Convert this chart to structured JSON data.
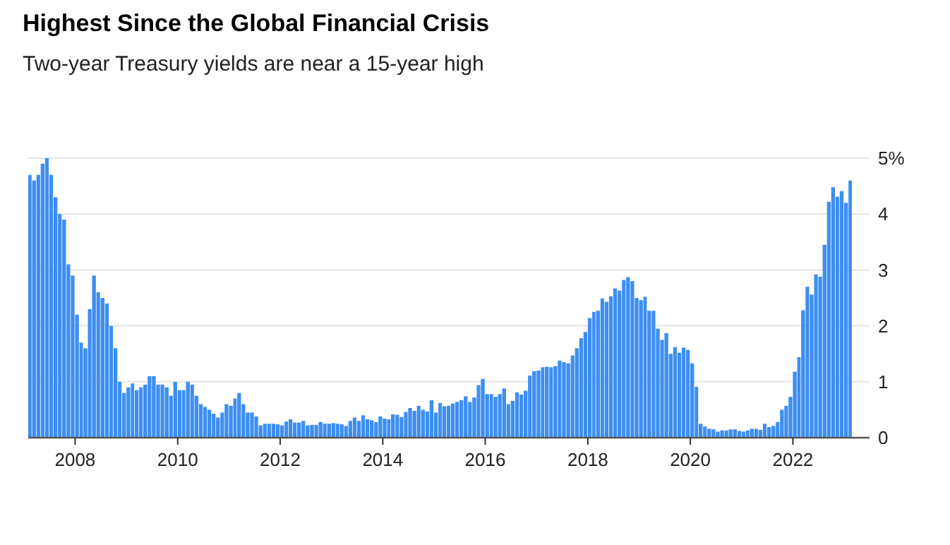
{
  "chart_data": {
    "type": "bar",
    "title": "Highest Since the Global Financial Crisis",
    "subtitle": "Two-year Treasury yields are near a 15-year high",
    "x": [
      "2007-02",
      "2007-03",
      "2007-04",
      "2007-05",
      "2007-06",
      "2007-07",
      "2007-08",
      "2007-09",
      "2007-10",
      "2007-11",
      "2007-12",
      "2008-01",
      "2008-02",
      "2008-03",
      "2008-04",
      "2008-05",
      "2008-06",
      "2008-07",
      "2008-08",
      "2008-09",
      "2008-10",
      "2008-11",
      "2008-12",
      "2009-01",
      "2009-02",
      "2009-03",
      "2009-04",
      "2009-05",
      "2009-06",
      "2009-07",
      "2009-08",
      "2009-09",
      "2009-10",
      "2009-11",
      "2009-12",
      "2010-01",
      "2010-02",
      "2010-03",
      "2010-04",
      "2010-05",
      "2010-06",
      "2010-07",
      "2010-08",
      "2010-09",
      "2010-10",
      "2010-11",
      "2010-12",
      "2011-01",
      "2011-02",
      "2011-03",
      "2011-04",
      "2011-05",
      "2011-06",
      "2011-07",
      "2011-08",
      "2011-09",
      "2011-10",
      "2011-11",
      "2011-12",
      "2012-01",
      "2012-02",
      "2012-03",
      "2012-04",
      "2012-05",
      "2012-06",
      "2012-07",
      "2012-08",
      "2012-09",
      "2012-10",
      "2012-11",
      "2012-12",
      "2013-01",
      "2013-02",
      "2013-03",
      "2013-04",
      "2013-05",
      "2013-06",
      "2013-07",
      "2013-08",
      "2013-09",
      "2013-10",
      "2013-11",
      "2013-12",
      "2014-01",
      "2014-02",
      "2014-03",
      "2014-04",
      "2014-05",
      "2014-06",
      "2014-07",
      "2014-08",
      "2014-09",
      "2014-10",
      "2014-11",
      "2014-12",
      "2015-01",
      "2015-02",
      "2015-03",
      "2015-04",
      "2015-05",
      "2015-06",
      "2015-07",
      "2015-08",
      "2015-09",
      "2015-10",
      "2015-11",
      "2015-12",
      "2016-01",
      "2016-02",
      "2016-03",
      "2016-04",
      "2016-05",
      "2016-06",
      "2016-07",
      "2016-08",
      "2016-09",
      "2016-10",
      "2016-11",
      "2016-12",
      "2017-01",
      "2017-02",
      "2017-03",
      "2017-04",
      "2017-05",
      "2017-06",
      "2017-07",
      "2017-08",
      "2017-09",
      "2017-10",
      "2017-11",
      "2017-12",
      "2018-01",
      "2018-02",
      "2018-03",
      "2018-04",
      "2018-05",
      "2018-06",
      "2018-07",
      "2018-08",
      "2018-09",
      "2018-10",
      "2018-11",
      "2018-12",
      "2019-01",
      "2019-02",
      "2019-03",
      "2019-04",
      "2019-05",
      "2019-06",
      "2019-07",
      "2019-08",
      "2019-09",
      "2019-10",
      "2019-11",
      "2019-12",
      "2020-01",
      "2020-02",
      "2020-03",
      "2020-04",
      "2020-05",
      "2020-06",
      "2020-07",
      "2020-08",
      "2020-09",
      "2020-10",
      "2020-11",
      "2020-12",
      "2021-01",
      "2021-02",
      "2021-03",
      "2021-04",
      "2021-05",
      "2021-06",
      "2021-07",
      "2021-08",
      "2021-09",
      "2021-10",
      "2021-11",
      "2021-12",
      "2022-01",
      "2022-02",
      "2022-03",
      "2022-04",
      "2022-05",
      "2022-06",
      "2022-07",
      "2022-08",
      "2022-09",
      "2022-10",
      "2022-11",
      "2022-12",
      "2023-01",
      "2023-02"
    ],
    "series": [
      {
        "color": "#3d8ef0",
        "values": [
          4.7,
          4.6,
          4.7,
          4.9,
          5.0,
          4.7,
          4.3,
          4.0,
          3.9,
          3.1,
          2.9,
          2.2,
          1.7,
          1.6,
          2.3,
          2.9,
          2.6,
          2.5,
          2.4,
          2.0,
          1.6,
          1.0,
          0.8,
          0.9,
          0.97,
          0.85,
          0.9,
          0.95,
          1.1,
          1.1,
          0.95,
          0.95,
          0.9,
          0.75,
          1.0,
          0.85,
          0.85,
          1.0,
          0.95,
          0.75,
          0.6,
          0.55,
          0.5,
          0.43,
          0.36,
          0.45,
          0.6,
          0.57,
          0.7,
          0.8,
          0.6,
          0.45,
          0.45,
          0.38,
          0.22,
          0.25,
          0.25,
          0.25,
          0.24,
          0.22,
          0.29,
          0.33,
          0.27,
          0.27,
          0.3,
          0.22,
          0.23,
          0.23,
          0.28,
          0.25,
          0.25,
          0.26,
          0.25,
          0.24,
          0.21,
          0.3,
          0.36,
          0.3,
          0.4,
          0.33,
          0.31,
          0.28,
          0.38,
          0.34,
          0.33,
          0.42,
          0.41,
          0.37,
          0.46,
          0.53,
          0.48,
          0.57,
          0.5,
          0.47,
          0.67,
          0.45,
          0.62,
          0.56,
          0.57,
          0.61,
          0.64,
          0.67,
          0.74,
          0.64,
          0.72,
          0.94,
          1.05,
          0.78,
          0.78,
          0.73,
          0.78,
          0.88,
          0.6,
          0.66,
          0.81,
          0.77,
          0.84,
          1.11,
          1.19,
          1.2,
          1.26,
          1.27,
          1.26,
          1.28,
          1.38,
          1.35,
          1.33,
          1.47,
          1.6,
          1.78,
          1.89,
          2.14,
          2.25,
          2.27,
          2.49,
          2.43,
          2.53,
          2.67,
          2.63,
          2.82,
          2.87,
          2.8,
          2.5,
          2.46,
          2.52,
          2.27,
          2.27,
          1.95,
          1.75,
          1.87,
          1.5,
          1.62,
          1.52,
          1.61,
          1.57,
          1.33,
          0.91,
          0.25,
          0.2,
          0.16,
          0.15,
          0.11,
          0.13,
          0.13,
          0.15,
          0.15,
          0.12,
          0.11,
          0.13,
          0.16,
          0.16,
          0.14,
          0.25,
          0.19,
          0.21,
          0.28,
          0.5,
          0.57,
          0.73,
          1.18,
          1.44,
          2.28,
          2.7,
          2.56,
          2.92,
          2.88,
          3.45,
          4.22,
          4.48,
          4.31,
          4.41,
          4.2,
          4.6
        ]
      }
    ],
    "xlim": [
      "2007-02",
      "2023-07"
    ],
    "xticks": [
      {
        "value": "2008-01-01",
        "label": "2008"
      },
      {
        "value": "2010-01-01",
        "label": "2010"
      },
      {
        "value": "2012-01-01",
        "label": "2012"
      },
      {
        "value": "2014-01-01",
        "label": "2014"
      },
      {
        "value": "2016-01-01",
        "label": "2016"
      },
      {
        "value": "2018-01-01",
        "label": "2018"
      },
      {
        "value": "2020-01-01",
        "label": "2020"
      },
      {
        "value": "2022-01-01",
        "label": "2022"
      }
    ],
    "ylim": [
      0,
      5
    ],
    "yticks": [
      0,
      1,
      2,
      3,
      4,
      {
        "value": 5,
        "label": "5%"
      }
    ],
    "grid": "y"
  }
}
